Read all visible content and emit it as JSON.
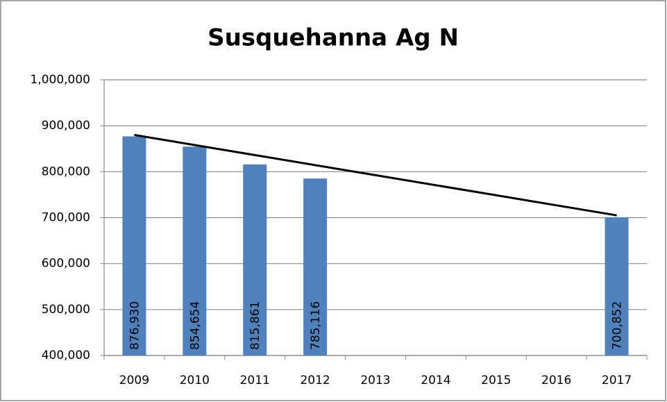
{
  "chart_data": {
    "type": "bar",
    "title": "Susquehanna Ag N",
    "categories": [
      "2009",
      "2010",
      "2011",
      "2012",
      "2013",
      "2014",
      "2015",
      "2016",
      "2017"
    ],
    "values": [
      876930,
      854654,
      815861,
      785116,
      null,
      null,
      null,
      null,
      700852
    ],
    "value_labels": [
      "876,930",
      "854,654",
      "815,861",
      "785,116",
      null,
      null,
      null,
      null,
      "700,852"
    ],
    "color": "#4f81bd",
    "trend": {
      "values": [
        880000,
        705000
      ],
      "color": "#000000"
    },
    "ylim": [
      400000,
      1000000
    ],
    "yticks": [
      {
        "value": 400000,
        "label": "400,000"
      },
      {
        "value": 500000,
        "label": "500,000"
      },
      {
        "value": 600000,
        "label": "600,000"
      },
      {
        "value": 700000,
        "label": "700,000"
      },
      {
        "value": 800000,
        "label": "800,000"
      },
      {
        "value": 900000,
        "label": "900,000"
      },
      {
        "value": 1000000,
        "label": "1,000,000"
      }
    ],
    "grid": true
  }
}
